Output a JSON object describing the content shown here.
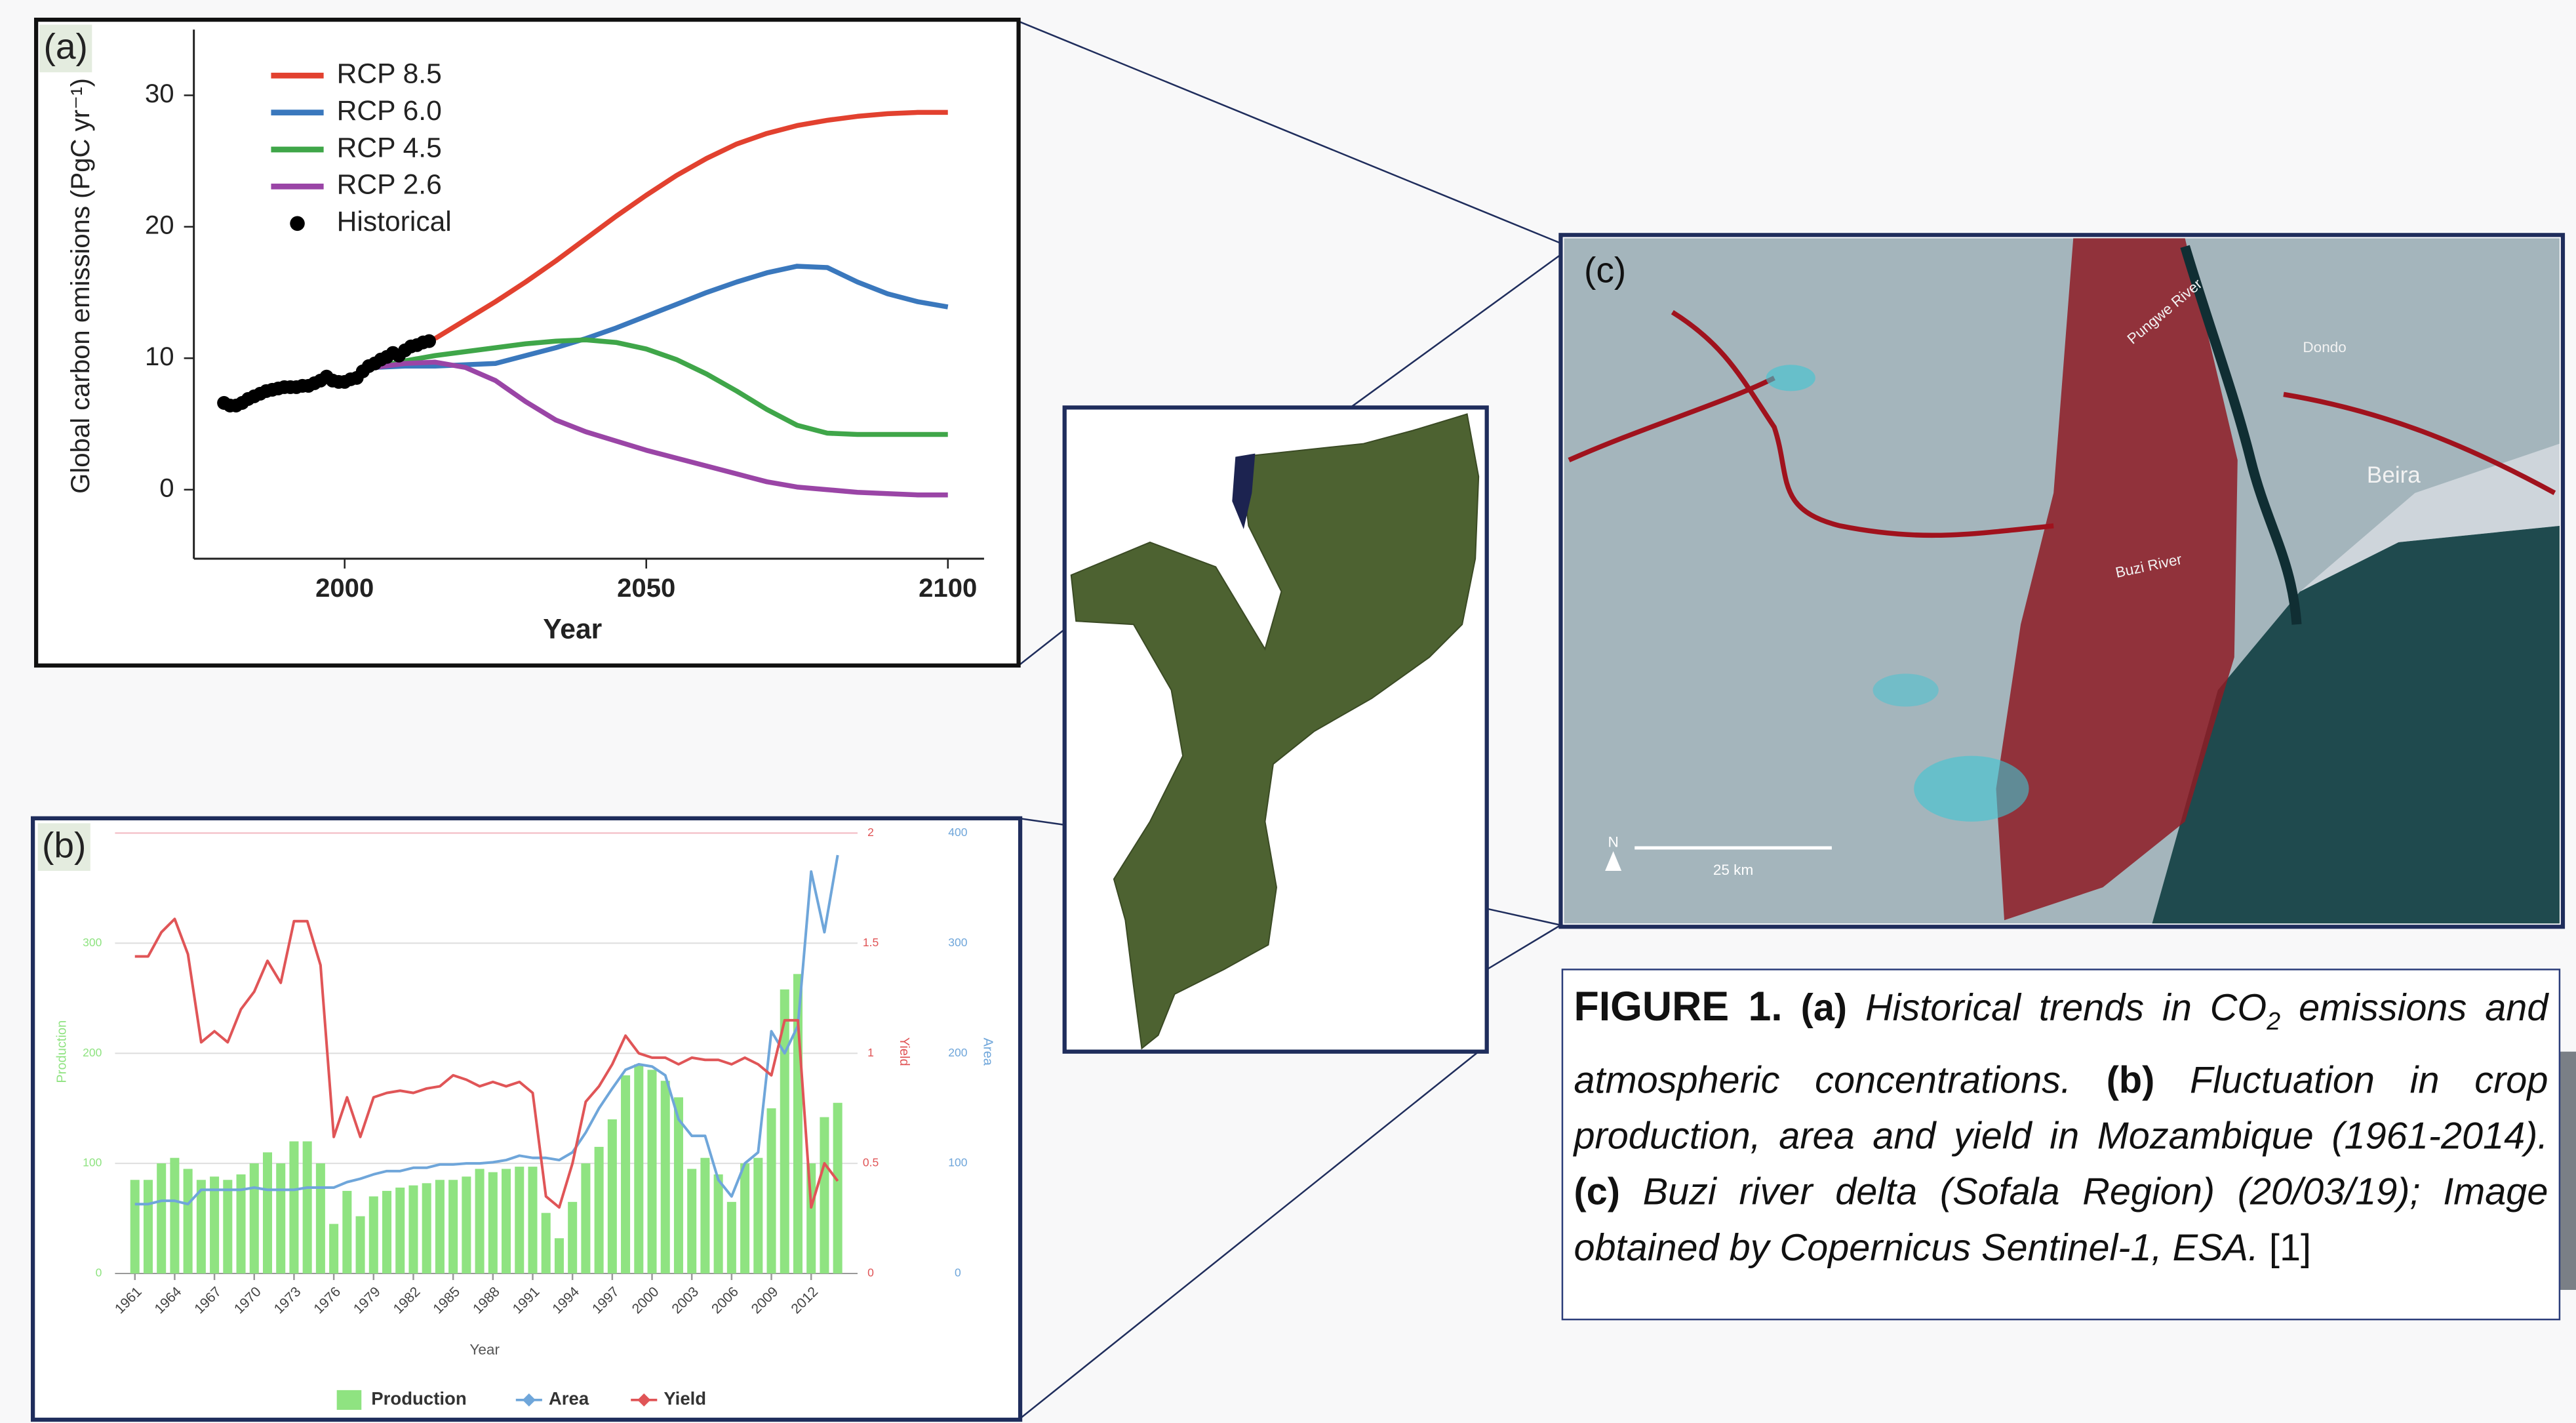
{
  "chart_data": [
    {
      "type": "line",
      "panel_label": "(a)",
      "xlabel": "Year",
      "ylabel": "Global carbon emissions (PgC yr⁻¹)",
      "xlim": [
        1975,
        2106
      ],
      "ylim": [
        -5.25,
        35
      ],
      "xticks": [
        2000,
        2050,
        2100
      ],
      "yticks": [
        0,
        10,
        20,
        30
      ],
      "legend": "upper left",
      "x": [
        2005,
        2010,
        2015,
        2020,
        2025,
        2030,
        2035,
        2040,
        2045,
        2050,
        2055,
        2060,
        2065,
        2070,
        2075,
        2080,
        2085,
        2090,
        2095,
        2100
      ],
      "series": [
        {
          "name": "RCP 8.5",
          "color": "#e2412f",
          "values": [
            null,
            null,
            11.5,
            12.9,
            14.3,
            15.8,
            17.4,
            19.1,
            20.8,
            22.4,
            23.9,
            25.2,
            26.3,
            27.1,
            27.7,
            28.1,
            28.4,
            28.6,
            28.7,
            28.7
          ]
        },
        {
          "name": "RCP 6.0",
          "color": "#3a78bd",
          "values": [
            9.3,
            9.4,
            9.4,
            9.5,
            9.6,
            10.2,
            10.8,
            11.5,
            12.3,
            13.2,
            14.1,
            15.0,
            15.8,
            16.5,
            17.0,
            16.9,
            15.8,
            14.9,
            14.3,
            13.9
          ]
        },
        {
          "name": "RCP 4.5",
          "color": "#3fa649",
          "values": [
            9.3,
            9.8,
            10.2,
            10.5,
            10.8,
            11.1,
            11.3,
            11.4,
            11.2,
            10.7,
            9.9,
            8.8,
            7.5,
            6.1,
            4.9,
            4.3,
            4.2,
            4.2,
            4.2,
            4.2
          ]
        },
        {
          "name": "RCP 2.6",
          "color": "#9a45a6",
          "values": [
            9.3,
            9.6,
            9.7,
            9.3,
            8.3,
            6.7,
            5.3,
            4.4,
            3.7,
            3.0,
            2.4,
            1.8,
            1.2,
            0.6,
            0.2,
            0.0,
            -0.2,
            -0.3,
            -0.4,
            -0.4
          ]
        },
        {
          "name": "Historical",
          "color": "#000000",
          "mode": "markers",
          "x": [
            1980,
            1981,
            1982,
            1983,
            1984,
            1985,
            1986,
            1987,
            1988,
            1989,
            1990,
            1991,
            1992,
            1993,
            1994,
            1995,
            1996,
            1997,
            1998,
            1999,
            2000,
            2001,
            2002,
            2003,
            2004,
            2005,
            2006,
            2007,
            2008,
            2009,
            2010,
            2011,
            2012,
            2013,
            2014
          ],
          "values": [
            6.6,
            6.4,
            6.4,
            6.6,
            6.9,
            7.1,
            7.3,
            7.5,
            7.6,
            7.7,
            7.8,
            7.8,
            7.8,
            7.9,
            7.9,
            8.1,
            8.3,
            8.6,
            8.3,
            8.2,
            8.2,
            8.4,
            8.5,
            9.0,
            9.4,
            9.6,
            9.9,
            10.1,
            10.4,
            10.2,
            10.6,
            10.9,
            11.0,
            11.2,
            11.3
          ]
        }
      ]
    },
    {
      "type": "combo",
      "panel_label": "(b)",
      "xlabel": "Year",
      "ylabel": "Production",
      "y2label": "Yield",
      "y3label": "Area",
      "xlim": [
        1959.5,
        2015.5
      ],
      "xticks": [
        1961,
        1964,
        1967,
        1970,
        1973,
        1976,
        1979,
        1982,
        1985,
        1988,
        1991,
        1994,
        1997,
        2000,
        2003,
        2006,
        2009,
        2012
      ],
      "ylim": [
        0,
        400
      ],
      "yticks": [
        0,
        100,
        200,
        300
      ],
      "y2lim": [
        0,
        2
      ],
      "y2ticks": [
        0,
        0.5,
        1,
        1.5,
        2
      ],
      "y3lim": [
        0,
        400
      ],
      "y3ticks": [
        0,
        100,
        200,
        300,
        400
      ],
      "grid": true,
      "legend": "bottom",
      "x": [
        1961,
        1962,
        1963,
        1964,
        1965,
        1966,
        1967,
        1968,
        1969,
        1970,
        1971,
        1972,
        1973,
        1974,
        1975,
        1976,
        1977,
        1978,
        1979,
        1980,
        1981,
        1982,
        1983,
        1984,
        1985,
        1986,
        1987,
        1988,
        1989,
        1990,
        1991,
        1992,
        1993,
        1994,
        1995,
        1996,
        1997,
        1998,
        1999,
        2000,
        2001,
        2002,
        2003,
        2004,
        2005,
        2006,
        2007,
        2008,
        2009,
        2010,
        2011,
        2012,
        2013,
        2014
      ],
      "series": [
        {
          "name": "Production",
          "type": "bar",
          "color": "#8fe381",
          "values": [
            85,
            85,
            100,
            105,
            95,
            85,
            88,
            85,
            90,
            100,
            110,
            100,
            120,
            120,
            100,
            45,
            75,
            52,
            70,
            75,
            78,
            80,
            82,
            85,
            85,
            88,
            95,
            92,
            95,
            97,
            97,
            55,
            32,
            65,
            100,
            115,
            140,
            180,
            190,
            185,
            175,
            160,
            95,
            105,
            90,
            65,
            100,
            105,
            150,
            258,
            272,
            100,
            142,
            155
          ]
        },
        {
          "name": "Area",
          "type": "line",
          "axis": "y3",
          "color": "#6fa6da",
          "values": [
            63,
            63,
            66,
            66,
            63,
            76,
            76,
            76,
            76,
            78,
            76,
            76,
            76,
            78,
            78,
            78,
            83,
            86,
            90,
            93,
            93,
            96,
            96,
            99,
            99,
            100,
            100,
            101,
            103,
            107,
            105,
            105,
            103,
            110,
            128,
            150,
            168,
            185,
            190,
            188,
            180,
            140,
            125,
            125,
            85,
            70,
            100,
            110,
            220,
            200,
            225,
            365,
            310,
            380
          ]
        },
        {
          "name": "Yield",
          "type": "line",
          "axis": "y2",
          "color": "#e05557",
          "values": [
            1.44,
            1.44,
            1.55,
            1.61,
            1.45,
            1.05,
            1.1,
            1.05,
            1.2,
            1.28,
            1.42,
            1.32,
            1.6,
            1.6,
            1.4,
            0.62,
            0.8,
            0.62,
            0.8,
            0.82,
            0.83,
            0.82,
            0.84,
            0.85,
            0.9,
            0.88,
            0.85,
            0.87,
            0.85,
            0.87,
            0.82,
            0.35,
            0.3,
            0.5,
            0.78,
            0.85,
            0.95,
            1.08,
            1.0,
            0.98,
            0.98,
            0.95,
            0.98,
            0.97,
            0.97,
            0.95,
            0.98,
            0.95,
            0.9,
            1.15,
            1.15,
            0.3,
            0.5,
            0.42
          ]
        }
      ]
    }
  ],
  "satellite": {
    "panel_label": "(c)",
    "labels": [
      "Pungwe River",
      "Dondo",
      "Beira",
      "Buzi River"
    ],
    "north": "N",
    "scale_bar": "25 km"
  },
  "caption": [
    {
      "text": "FIGURE 1.",
      "style": "bold"
    },
    {
      "text": " (a)",
      "style": "bold"
    },
    {
      "text": " Historical trends in CO",
      "style": "italic"
    },
    {
      "text": "2",
      "style": "italic-sub"
    },
    {
      "text": " emissions and atmospheric concentrations.",
      "style": "italic"
    },
    {
      "text": " (b)",
      "style": "bold"
    },
    {
      "text": " Fluctuation in crop production, area and yield in Mozambique (1961-2014).",
      "style": "italic"
    },
    {
      "text": " (c)",
      "style": "bold"
    },
    {
      "text": " Buzi river delta (Sofala Region) (20/03/19); Image obtained by Copernicus Sentinel-1, ESA.",
      "style": "italic"
    },
    {
      "text": " [1]",
      "style": "normal"
    }
  ]
}
